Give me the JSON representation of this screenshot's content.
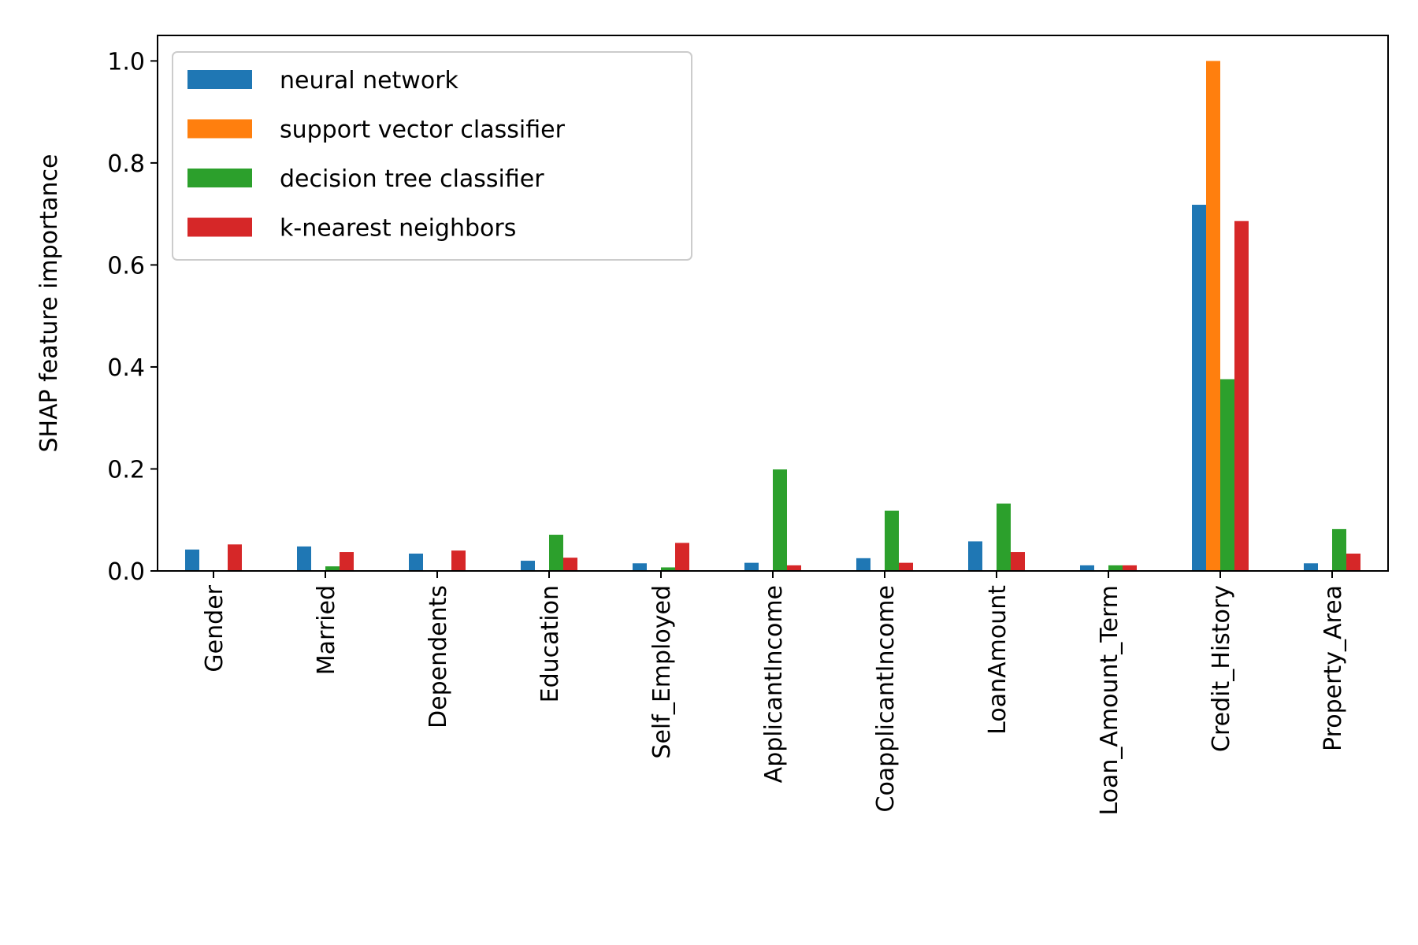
{
  "chart_data": {
    "type": "bar",
    "title": "",
    "xlabel": "",
    "ylabel": "SHAP feature importance",
    "ylim": [
      0,
      1.05
    ],
    "yticks": [
      0.0,
      0.2,
      0.4,
      0.6,
      0.8,
      1.0
    ],
    "ytick_labels": [
      "0.0",
      "0.2",
      "0.4",
      "0.6",
      "0.8",
      "1.0"
    ],
    "grid": false,
    "legend_position": "top-left",
    "categories": [
      "Gender",
      "Married",
      "Dependents",
      "Education",
      "Self_Employed",
      "ApplicantIncome",
      "CoapplicantIncome",
      "LoanAmount",
      "Loan_Amount_Term",
      "Credit_History",
      "Property_Area"
    ],
    "series": [
      {
        "name": "neural network",
        "color": "#1f77b4",
        "values": [
          0.042,
          0.048,
          0.034,
          0.02,
          0.015,
          0.016,
          0.025,
          0.058,
          0.011,
          0.718,
          0.015
        ]
      },
      {
        "name": "support vector classifier",
        "color": "#ff7f0e",
        "values": [
          0.0,
          0.0,
          0.0,
          0.0,
          0.0,
          0.0,
          0.0,
          0.0,
          0.0,
          1.0,
          0.0
        ]
      },
      {
        "name": "decision tree classifier",
        "color": "#2ca02c",
        "values": [
          0.0,
          0.009,
          0.0,
          0.071,
          0.007,
          0.199,
          0.118,
          0.132,
          0.011,
          0.376,
          0.082
        ]
      },
      {
        "name": "k-nearest neighbors",
        "color": "#d62728",
        "values": [
          0.052,
          0.037,
          0.04,
          0.026,
          0.055,
          0.011,
          0.016,
          0.037,
          0.011,
          0.686,
          0.034
        ]
      }
    ]
  }
}
